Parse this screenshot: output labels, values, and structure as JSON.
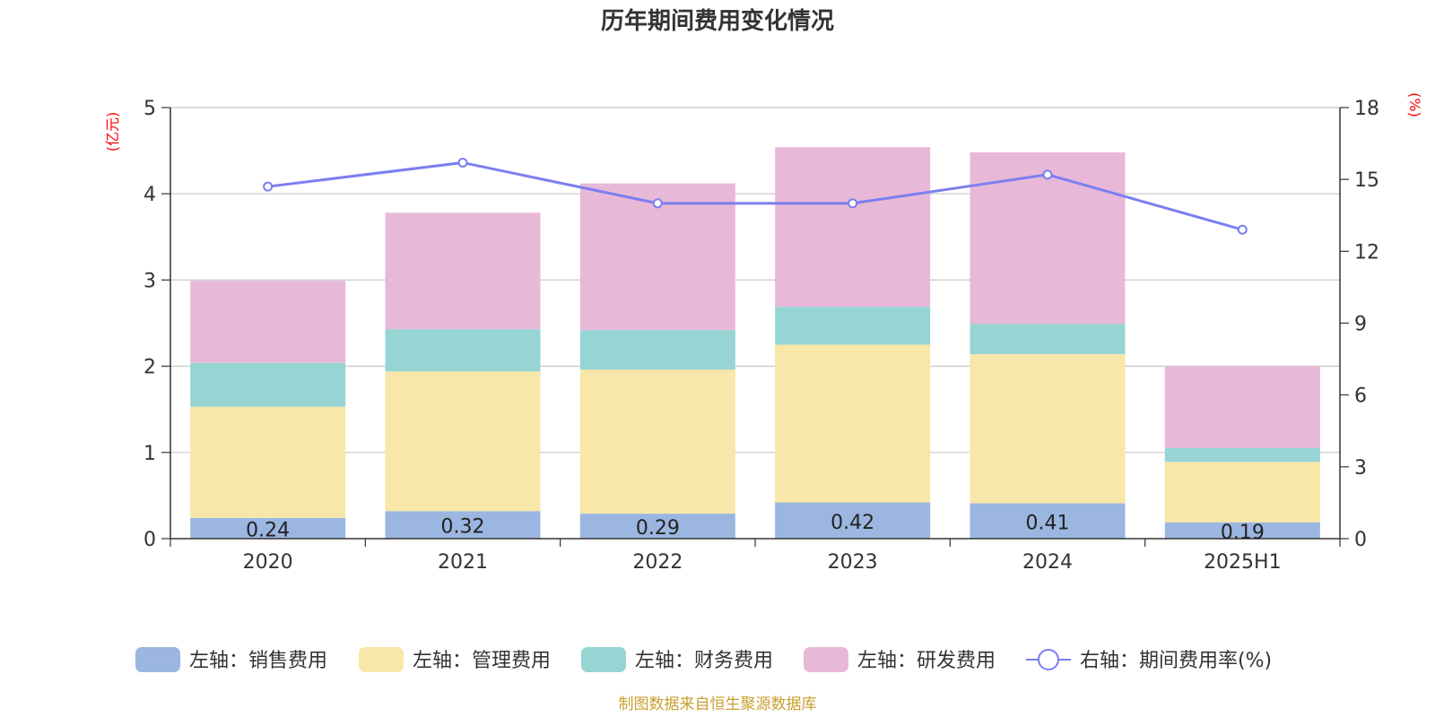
{
  "chart_data": {
    "type": "bar",
    "stacked": true,
    "title": "历年期间费用变化情况",
    "categories": [
      "2020",
      "2021",
      "2022",
      "2023",
      "2024",
      "2025H1"
    ],
    "left_axis": {
      "unit": "(亿元)",
      "ylim": [
        0,
        5
      ],
      "ticks": [
        "0",
        "1",
        "2",
        "3",
        "4",
        "5"
      ]
    },
    "right_axis": {
      "unit": "(%)",
      "ylim": [
        0,
        18
      ],
      "ticks": [
        "0",
        "3",
        "6",
        "9",
        "12",
        "15",
        "18"
      ]
    },
    "grid": true,
    "legend_position": "bottom",
    "series": [
      {
        "name": "左轴：销售费用",
        "type": "bar",
        "axis": "left",
        "color": "#9bb6e0",
        "values": [
          0.24,
          0.32,
          0.29,
          0.42,
          0.41,
          0.19
        ],
        "labels": [
          "0.24",
          "0.32",
          "0.29",
          "0.42",
          "0.41",
          "0.19"
        ]
      },
      {
        "name": "左轴：管理费用",
        "type": "bar",
        "axis": "left",
        "color": "#f8e7a8",
        "values": [
          1.29,
          1.62,
          1.67,
          1.83,
          1.73,
          0.7
        ]
      },
      {
        "name": "左轴：财务费用",
        "type": "bar",
        "axis": "left",
        "color": "#97d4d4",
        "values": [
          0.51,
          0.49,
          0.46,
          0.44,
          0.35,
          0.16
        ]
      },
      {
        "name": "左轴：研发费用",
        "type": "bar",
        "axis": "left",
        "color": "#e8b8d8",
        "values": [
          0.95,
          1.35,
          1.7,
          1.85,
          1.99,
          0.95
        ]
      },
      {
        "name": "右轴：期间费用率(%)",
        "type": "line",
        "axis": "right",
        "color": "#7b7ff0",
        "values": [
          14.7,
          15.7,
          14.0,
          14.0,
          15.2,
          12.9
        ]
      }
    ]
  },
  "source_text": "制图数据来自恒生聚源数据库"
}
